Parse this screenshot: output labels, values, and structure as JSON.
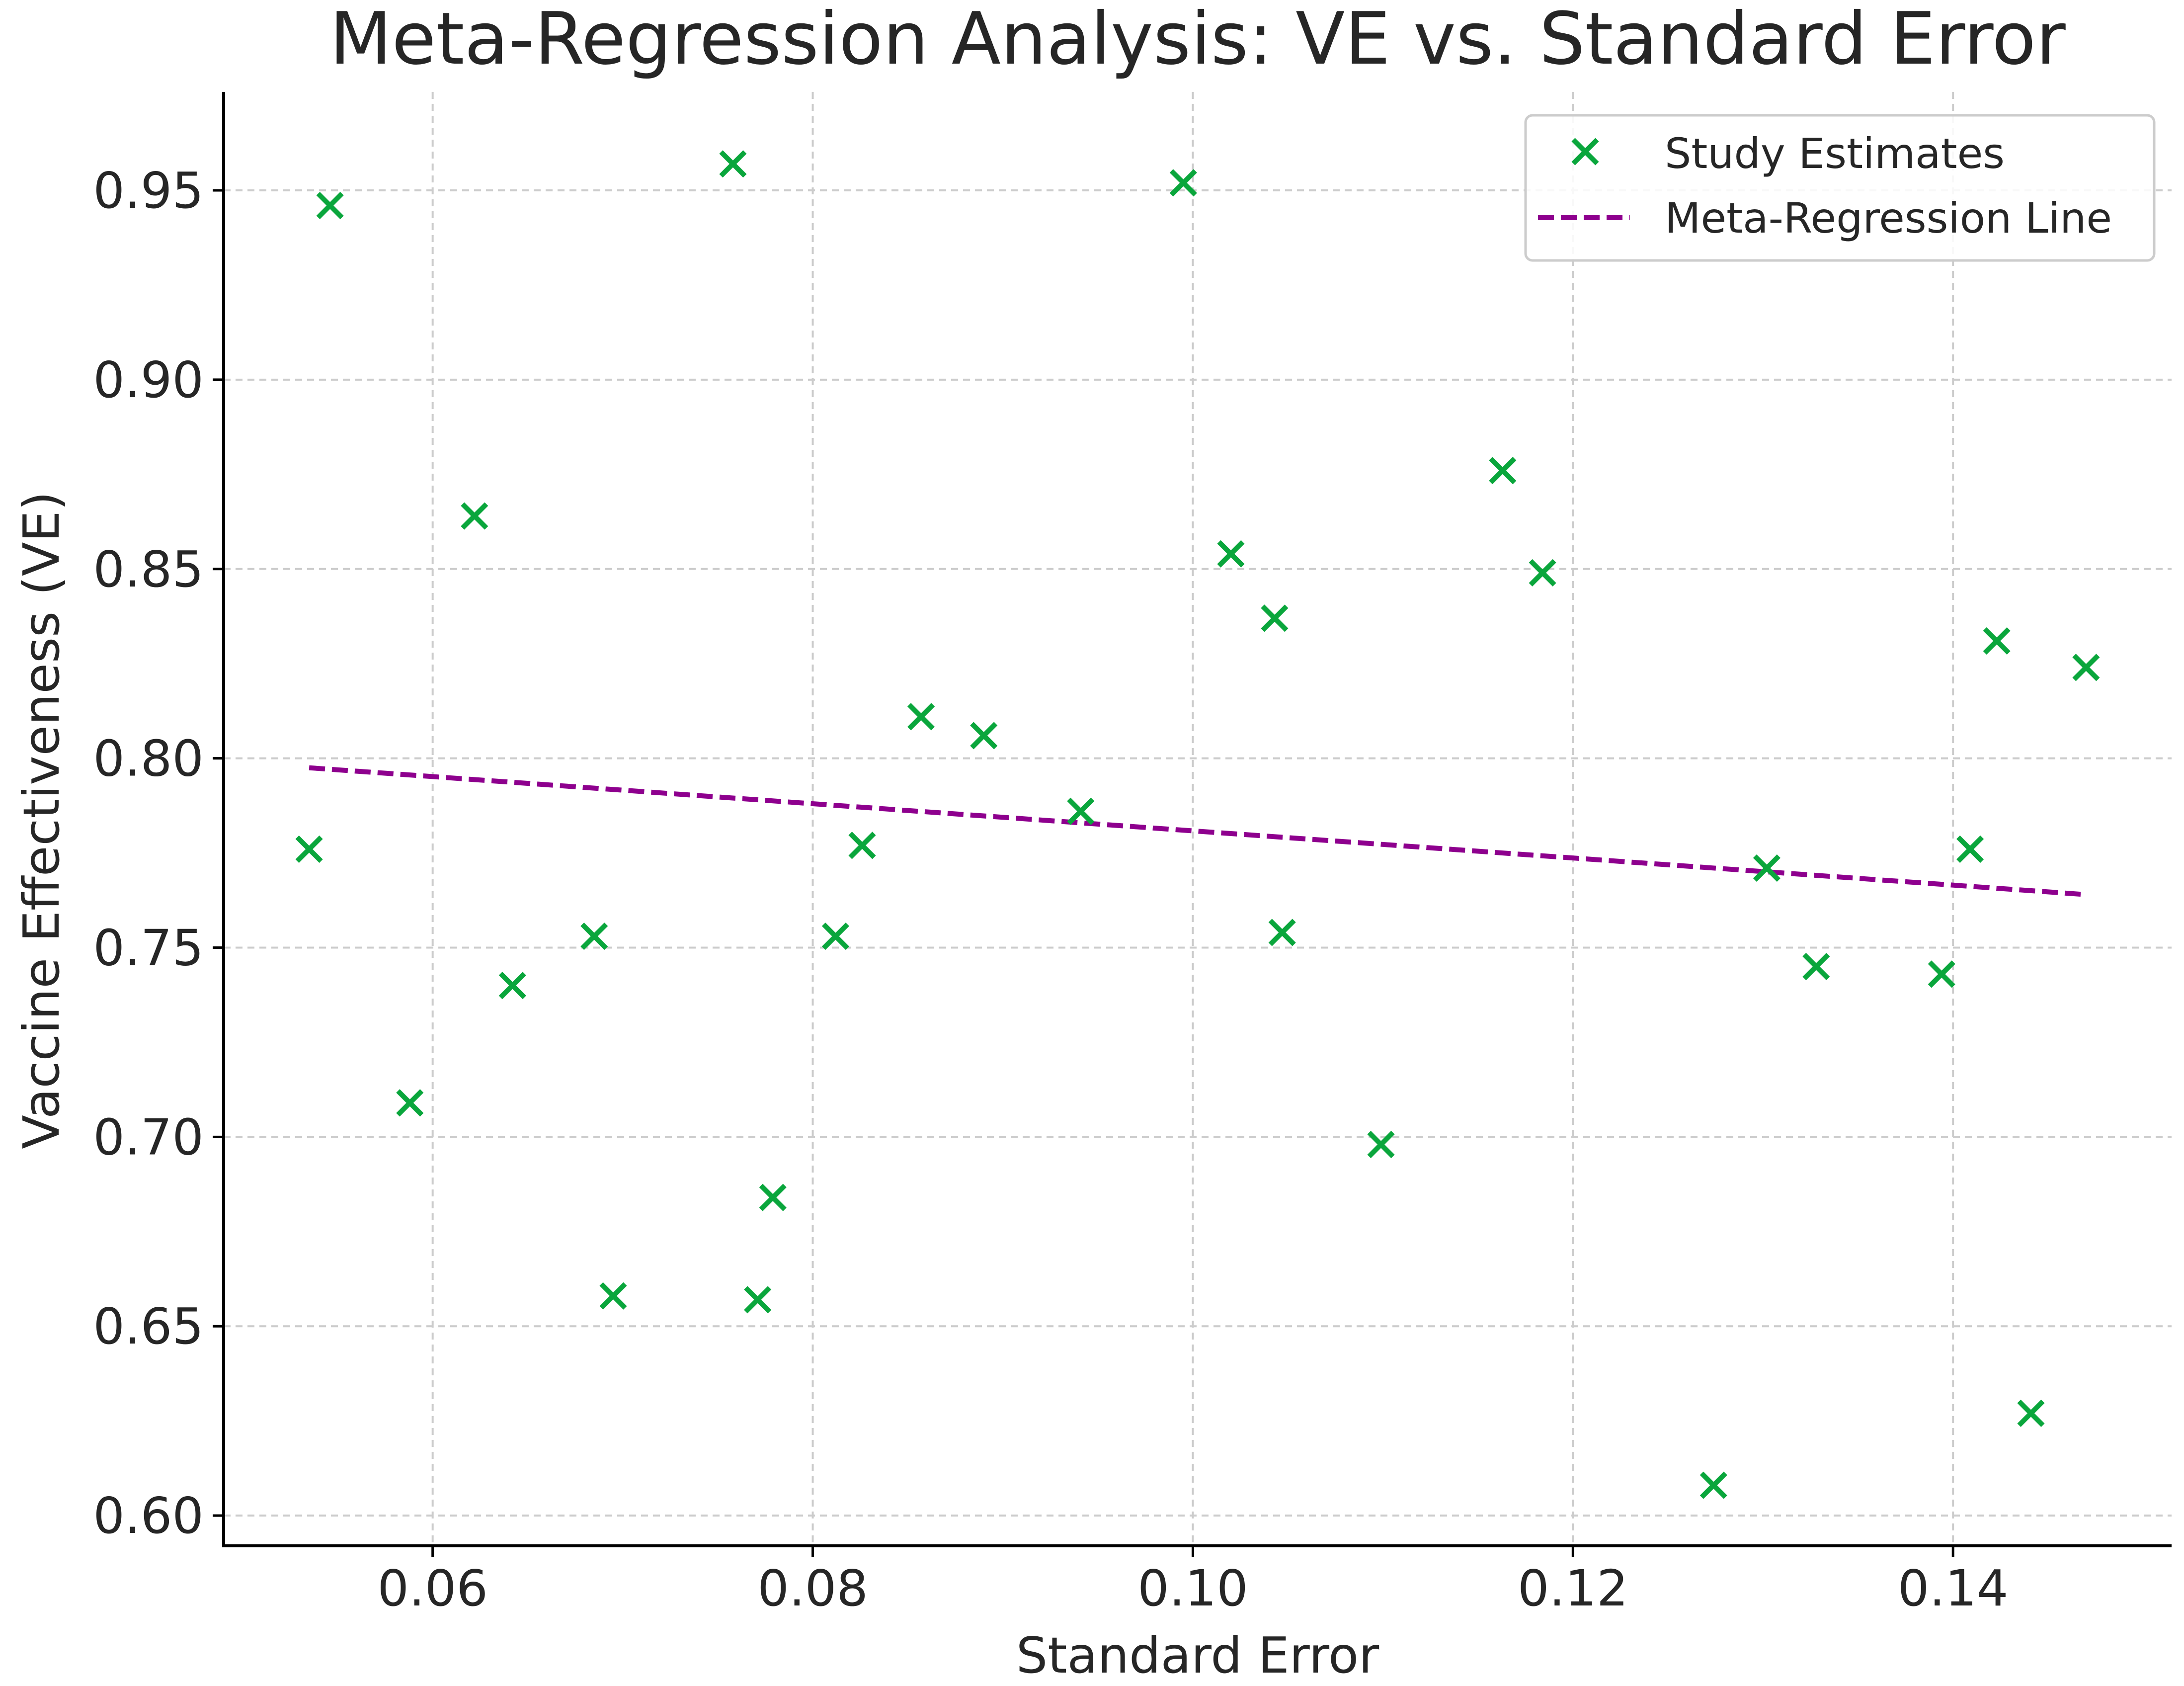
{
  "chart_data": {
    "type": "scatter",
    "title": "Meta-Regression Analysis: VE vs. Standard Error",
    "xlabel": "Standard Error",
    "ylabel": "Vaccine Effectiveness (VE)",
    "xlim": [
      0.049,
      0.1515
    ],
    "ylim": [
      0.592,
      0.976
    ],
    "xticks": [
      0.06,
      0.08,
      0.1,
      0.12,
      0.14
    ],
    "xtick_labels": [
      "0.06",
      "0.08",
      "0.10",
      "0.12",
      "0.14"
    ],
    "yticks": [
      0.6,
      0.65,
      0.7,
      0.75,
      0.8,
      0.85,
      0.9,
      0.95
    ],
    "ytick_labels": [
      "0.60",
      "0.65",
      "0.70",
      "0.75",
      "0.80",
      "0.85",
      "0.90",
      "0.95"
    ],
    "grid": true,
    "legend_position": "top-right",
    "colors": {
      "points": "#0aa63c",
      "line": "#8e008e"
    },
    "series": [
      {
        "name": "Study Estimates",
        "kind": "scatter",
        "marker": "x",
        "x": [
          0.0535,
          0.0546,
          0.0588,
          0.0622,
          0.0642,
          0.0685,
          0.0695,
          0.0758,
          0.0771,
          0.0779,
          0.0812,
          0.0826,
          0.0857,
          0.089,
          0.0941,
          0.0995,
          0.102,
          0.1043,
          0.1047,
          0.1099,
          0.1163,
          0.1184,
          0.1274,
          0.1302,
          0.1328,
          0.1394,
          0.1409,
          0.1423,
          0.1441,
          0.147
        ],
        "y": [
          0.776,
          0.946,
          0.709,
          0.864,
          0.74,
          0.753,
          0.658,
          0.957,
          0.657,
          0.684,
          0.753,
          0.777,
          0.811,
          0.806,
          0.786,
          0.952,
          0.854,
          0.837,
          0.754,
          0.698,
          0.876,
          0.849,
          0.608,
          0.771,
          0.745,
          0.743,
          0.776,
          0.831,
          0.627,
          0.824
        ]
      },
      {
        "name": "Meta-Regression Line",
        "kind": "line",
        "style": "dashed",
        "x": [
          0.0535,
          0.147
        ],
        "y": [
          0.7975,
          0.764
        ]
      }
    ]
  }
}
